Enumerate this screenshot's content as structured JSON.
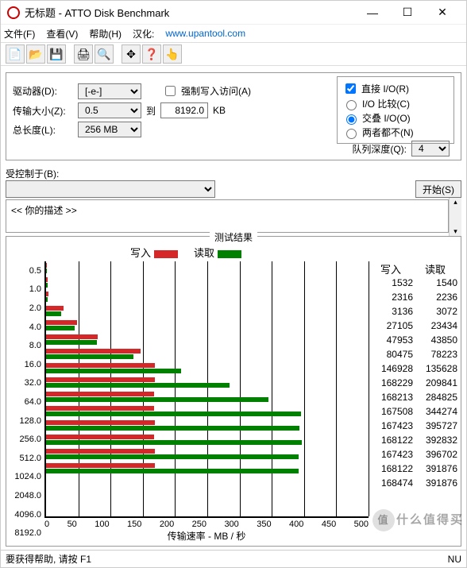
{
  "window": {
    "title": "无标题 - ATTO Disk Benchmark",
    "min": "—",
    "max": "☐",
    "close": "✕"
  },
  "menu": {
    "file": "文件(F)",
    "view": "查看(V)",
    "help": "帮助(H)",
    "hanhua_label": "汉化:",
    "link": "www.upantool.com"
  },
  "toolbar_icons": [
    "📄",
    "📂",
    "💾",
    "",
    "🖨",
    "🔍",
    "",
    "✥",
    "❓",
    "👆"
  ],
  "form": {
    "drive_label": "驱动器(D):",
    "drive_value": "[-e-]",
    "size_label": "传输大小(Z):",
    "size_from": "0.5",
    "to_label": "到",
    "size_to": "8192.0",
    "kb": "KB",
    "len_label": "总长度(L):",
    "len_value": "256 MB",
    "force_label": "强制写入访问(A)",
    "force_checked": false,
    "direct_label": "直接 I/O(R)",
    "direct_checked": true,
    "radio_compare": "I/O 比较(C)",
    "radio_overlap": "交叠 I/O(O)",
    "radio_neither": "两者都不(N)",
    "radio_selected": "overlap",
    "queue_label": "队列深度(Q):",
    "queue_value": "4",
    "controlled_label": "受控制于(B):",
    "start_btn": "开始(S)",
    "desc_placeholder": "<<  你的描述   >>"
  },
  "results": {
    "title": "测试结果",
    "legend_write": "写入",
    "legend_read": "读取",
    "col_write": "写入",
    "col_read": "读取",
    "x_title": "传输速率 - MB / 秒",
    "x_ticks": [
      "0",
      "50",
      "100",
      "150",
      "200",
      "250",
      "300",
      "350",
      "400",
      "450",
      "500"
    ],
    "x_max": 500,
    "write_color": "#d62728",
    "read_color": "#008000",
    "grid_color": "#000000",
    "rows": [
      {
        "label": "0.5",
        "write": 1532,
        "read": 1540
      },
      {
        "label": "1.0",
        "write": 2316,
        "read": 2236
      },
      {
        "label": "2.0",
        "write": 3136,
        "read": 3072
      },
      {
        "label": "4.0",
        "write": 27105,
        "read": 23434
      },
      {
        "label": "8.0",
        "write": 47953,
        "read": 43850
      },
      {
        "label": "16.0",
        "write": 80475,
        "read": 78223
      },
      {
        "label": "32.0",
        "write": 146928,
        "read": 135628
      },
      {
        "label": "64.0",
        "write": 168229,
        "read": 209841
      },
      {
        "label": "128.0",
        "write": 168213,
        "read": 284825
      },
      {
        "label": "256.0",
        "write": 167508,
        "read": 344274
      },
      {
        "label": "512.0",
        "write": 167423,
        "read": 395727
      },
      {
        "label": "1024.0",
        "write": 168122,
        "read": 392832
      },
      {
        "label": "2048.0",
        "write": 167423,
        "read": 396702
      },
      {
        "label": "4096.0",
        "write": 168122,
        "read": 391876
      },
      {
        "label": "8192.0",
        "write": 168474,
        "read": 391876
      }
    ]
  },
  "status": {
    "left": "要获得帮助, 请按 F1",
    "mid": "NU"
  },
  "watermark": {
    "circle": "值",
    "text": "什么值得买"
  }
}
